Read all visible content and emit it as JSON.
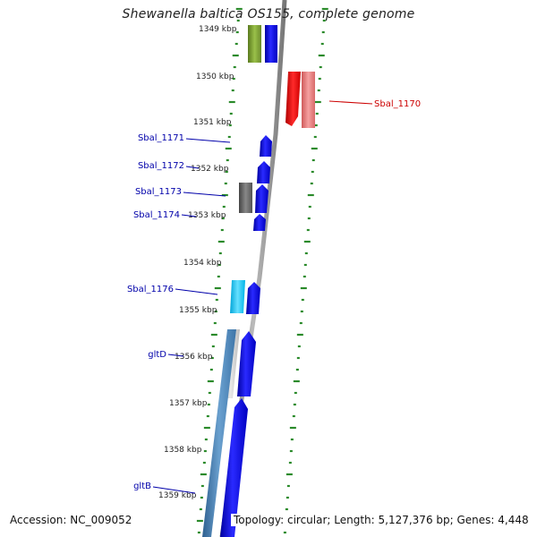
{
  "title": "Shewanella baltica OS155, complete genome",
  "footer": {
    "accession": "Accession: NC_009052",
    "summary": "Topology: circular; Length: 5,127,376 bp; Genes: 4,448"
  },
  "colors": {
    "tick": "#2a8a2a",
    "backbone": "#8c8c8c",
    "forward_gene": "#0000ee",
    "reverse_gene": "#ee0000",
    "label_blue": "#0000aa",
    "label_red": "#cc0000"
  },
  "kbp_labels": [
    "1349 kbp",
    "1350 kbp",
    "1351 kbp",
    "1352 kbp",
    "1353 kbp",
    "1354 kbp",
    "1355 kbp",
    "1356 kbp",
    "1357 kbp",
    "1358 kbp",
    "1359 kbp"
  ],
  "gene_labels": [
    {
      "id": "sbal1170",
      "text": "Sbal_1170",
      "color": "#cc0000"
    },
    {
      "id": "sbal1171",
      "text": "Sbal_1171",
      "color": "#0000aa"
    },
    {
      "id": "sbal1172",
      "text": "Sbal_1172",
      "color": "#0000aa"
    },
    {
      "id": "sbal1173",
      "text": "Sbal_1173",
      "color": "#0000aa"
    },
    {
      "id": "sbal1174",
      "text": "Sbal_1174",
      "color": "#0000aa"
    },
    {
      "id": "sbal1176",
      "text": "Sbal_1176",
      "color": "#0000aa"
    },
    {
      "id": "gltD",
      "text": "gltD",
      "color": "#0000aa"
    },
    {
      "id": "gltB",
      "text": "gltB",
      "color": "#0000aa"
    }
  ]
}
